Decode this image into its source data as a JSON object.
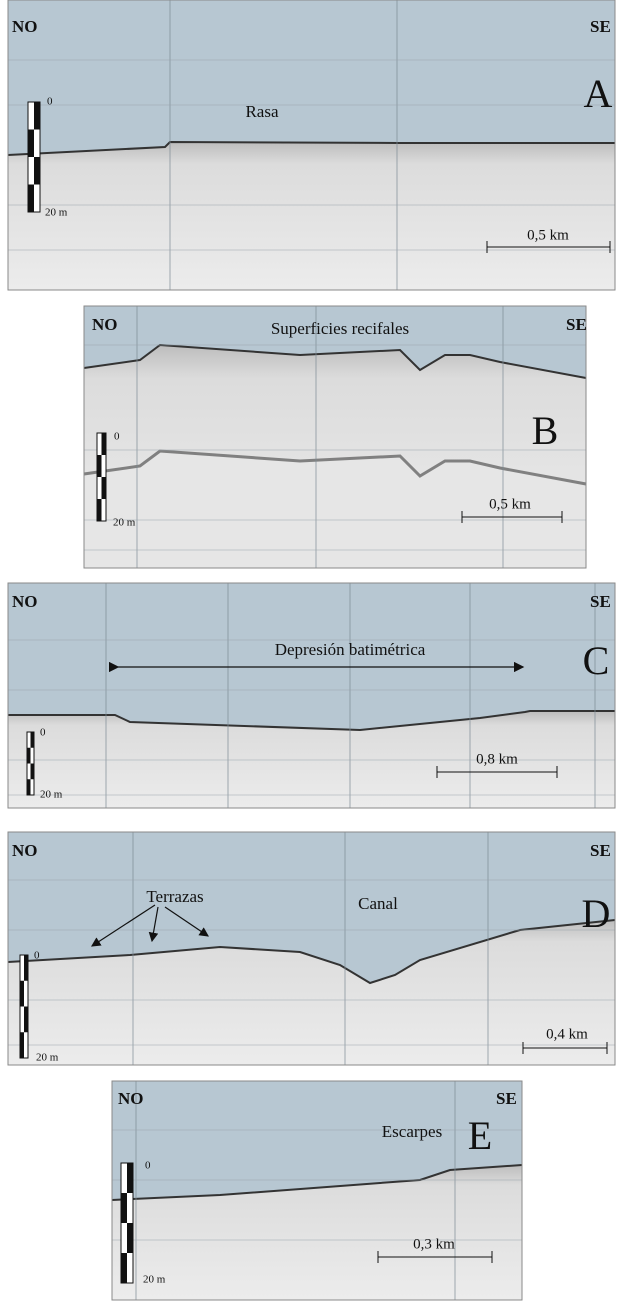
{
  "panels": [
    {
      "left": "NO",
      "right": "SE",
      "letter": "A",
      "annotations": [
        "Rasa"
      ],
      "depth_top": "0",
      "depth_bottom": "20 m",
      "scale": "0,5 km"
    },
    {
      "left": "NO",
      "right": "SE",
      "letter": "B",
      "annotations": [
        "Superficies recifales"
      ],
      "depth_top": "0",
      "depth_bottom": "20 m",
      "scale": "0,5 km"
    },
    {
      "left": "NO",
      "right": "SE",
      "letter": "C",
      "annotations": [
        "Depresión batimétrica"
      ],
      "depth_top": "0",
      "depth_bottom": "20 m",
      "scale": "0,8 km"
    },
    {
      "left": "NO",
      "right": "SE",
      "letter": "D",
      "annotations": [
        "Terrazas",
        "Canal"
      ],
      "depth_top": "0",
      "depth_bottom": "20 m",
      "scale": "0,4 km"
    },
    {
      "left": "NO",
      "right": "SE",
      "letter": "E",
      "annotations": [
        "Escarpes"
      ],
      "depth_top": "0",
      "depth_bottom": "20 m",
      "scale": "0,3 km"
    }
  ]
}
